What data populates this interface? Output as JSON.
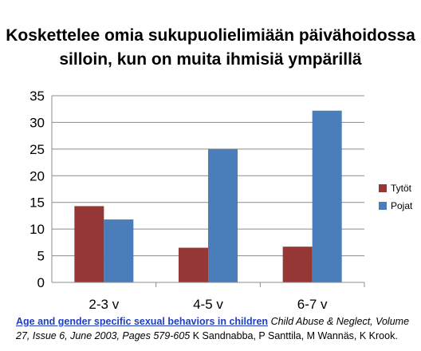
{
  "chart_data": {
    "type": "bar",
    "title_line1": "Koskettelee omia sukupuolielimiään päivähoidossa",
    "title_line2": "silloin, kun on muita ihmisiä ympärillä",
    "categories": [
      "2-3 v",
      "4-5 v",
      "6-7 v"
    ],
    "series": [
      {
        "name": "Tytöt",
        "color": "#953735",
        "values": [
          14.3,
          6.5,
          6.7
        ]
      },
      {
        "name": "Pojat",
        "color": "#4a7ebb",
        "values": [
          11.8,
          25.0,
          32.2
        ]
      }
    ],
    "ylim": [
      0,
      35
    ],
    "yticks": [
      "0",
      "5",
      "10",
      "15",
      "20",
      "25",
      "30",
      "35"
    ],
    "grid": true,
    "legend_position": "right"
  },
  "citation": {
    "link_text": "Age and gender specific sexual behaviors in children",
    "journal": "Child Abuse & Neglect, Volume 27, Issue 6, June 2003, Pages 579-605",
    "authors": "K Sandnabba, P Santtila, M Wannäs, K Krook."
  }
}
